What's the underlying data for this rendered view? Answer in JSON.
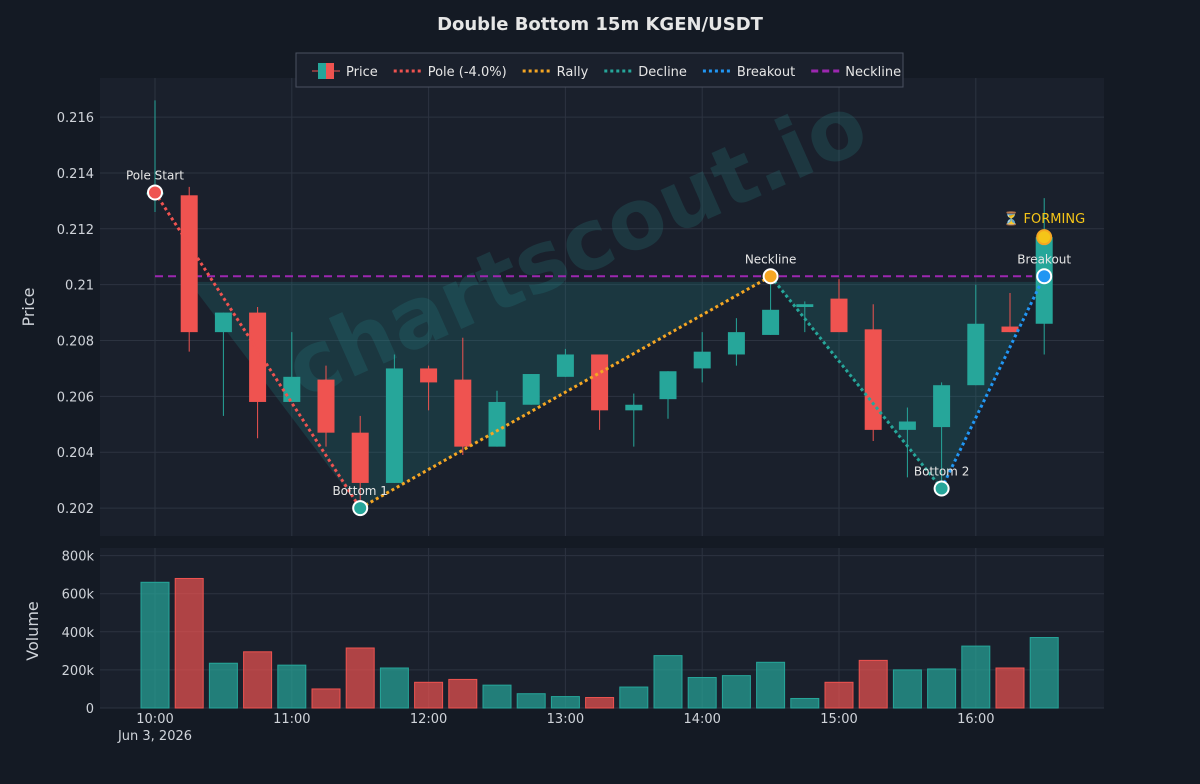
{
  "chart_data": {
    "type": "candlestick",
    "title": "Double Bottom 15m KGEN/USDT",
    "watermark": "chartscout.io",
    "ylabel_price": "Price",
    "ylabel_volume": "Volume",
    "date_label": "Jun 3, 2026",
    "x_ticks": [
      "10:00",
      "11:00",
      "12:00",
      "13:00",
      "14:00",
      "15:00",
      "16:00"
    ],
    "price_ticks": [
      "0.202",
      "0.204",
      "0.206",
      "0.208",
      "0.21",
      "0.212",
      "0.214",
      "0.216"
    ],
    "volume_ticks": [
      "0",
      "200k",
      "400k",
      "600k",
      "800k"
    ],
    "price_range": [
      0.201,
      0.2174
    ],
    "volume_range": [
      0,
      840000
    ],
    "legend": [
      {
        "label": "Price",
        "kind": "candle"
      },
      {
        "label": "Pole (-4.0%)",
        "kind": "dotted",
        "color": "#ef5350"
      },
      {
        "label": "Rally",
        "kind": "dotted",
        "color": "#f5a623"
      },
      {
        "label": "Decline",
        "kind": "dotted",
        "color": "#26a69a"
      },
      {
        "label": "Breakout",
        "kind": "dotted",
        "color": "#2196f3"
      },
      {
        "label": "Neckline",
        "kind": "dashed",
        "color": "#9c27b0"
      }
    ],
    "candles": [
      {
        "t": "10:00",
        "o": 0.2133,
        "h": 0.2166,
        "l": 0.2126,
        "c": 0.2133,
        "v": 660000
      },
      {
        "t": "10:15",
        "o": 0.2132,
        "h": 0.2135,
        "l": 0.2076,
        "c": 0.2083,
        "v": 680000
      },
      {
        "t": "10:30",
        "o": 0.2083,
        "h": 0.209,
        "l": 0.2053,
        "c": 0.209,
        "v": 235000
      },
      {
        "t": "10:45",
        "o": 0.209,
        "h": 0.2092,
        "l": 0.2045,
        "c": 0.2058,
        "v": 295000
      },
      {
        "t": "11:00",
        "o": 0.2058,
        "h": 0.2083,
        "l": 0.2058,
        "c": 0.2067,
        "v": 225000
      },
      {
        "t": "11:15",
        "o": 0.2066,
        "h": 0.2071,
        "l": 0.2042,
        "c": 0.2047,
        "v": 100000
      },
      {
        "t": "11:30",
        "o": 0.2047,
        "h": 0.2053,
        "l": 0.2021,
        "c": 0.2029,
        "v": 315000
      },
      {
        "t": "11:45",
        "o": 0.2029,
        "h": 0.2075,
        "l": 0.2029,
        "c": 0.207,
        "v": 210000
      },
      {
        "t": "12:00",
        "o": 0.207,
        "h": 0.2071,
        "l": 0.2055,
        "c": 0.2065,
        "v": 135000
      },
      {
        "t": "12:15",
        "o": 0.2066,
        "h": 0.2081,
        "l": 0.2039,
        "c": 0.2042,
        "v": 150000
      },
      {
        "t": "12:30",
        "o": 0.2042,
        "h": 0.2062,
        "l": 0.2042,
        "c": 0.2058,
        "v": 120000
      },
      {
        "t": "12:45",
        "o": 0.2057,
        "h": 0.2068,
        "l": 0.2057,
        "c": 0.2068,
        "v": 75000
      },
      {
        "t": "13:00",
        "o": 0.2067,
        "h": 0.2077,
        "l": 0.2067,
        "c": 0.2075,
        "v": 60000
      },
      {
        "t": "13:15",
        "o": 0.2075,
        "h": 0.2075,
        "l": 0.2048,
        "c": 0.2055,
        "v": 55000
      },
      {
        "t": "13:30",
        "o": 0.2055,
        "h": 0.2061,
        "l": 0.2042,
        "c": 0.2057,
        "v": 110000
      },
      {
        "t": "13:45",
        "o": 0.2059,
        "h": 0.2069,
        "l": 0.2052,
        "c": 0.2069,
        "v": 275000
      },
      {
        "t": "14:00",
        "o": 0.207,
        "h": 0.2083,
        "l": 0.2065,
        "c": 0.2076,
        "v": 160000
      },
      {
        "t": "14:15",
        "o": 0.2075,
        "h": 0.2088,
        "l": 0.2071,
        "c": 0.2083,
        "v": 170000
      },
      {
        "t": "14:30",
        "o": 0.2082,
        "h": 0.2103,
        "l": 0.2082,
        "c": 0.2091,
        "v": 240000
      },
      {
        "t": "14:45",
        "o": 0.2092,
        "h": 0.2094,
        "l": 0.2083,
        "c": 0.2093,
        "v": 50000
      },
      {
        "t": "15:00",
        "o": 0.2095,
        "h": 0.2102,
        "l": 0.2083,
        "c": 0.2083,
        "v": 135000
      },
      {
        "t": "15:15",
        "o": 0.2084,
        "h": 0.2093,
        "l": 0.2044,
        "c": 0.2048,
        "v": 250000
      },
      {
        "t": "15:30",
        "o": 0.2048,
        "h": 0.2056,
        "l": 0.2031,
        "c": 0.2051,
        "v": 200000
      },
      {
        "t": "15:45",
        "o": 0.2049,
        "h": 0.2065,
        "l": 0.2025,
        "c": 0.2064,
        "v": 205000
      },
      {
        "t": "16:00",
        "o": 0.2064,
        "h": 0.21,
        "l": 0.2064,
        "c": 0.2086,
        "v": 325000
      },
      {
        "t": "16:15",
        "o": 0.2085,
        "h": 0.2097,
        "l": 0.2083,
        "c": 0.2083,
        "v": 210000
      },
      {
        "t": "16:30",
        "o": 0.2086,
        "h": 0.2131,
        "l": 0.2075,
        "c": 0.2117,
        "v": 370000
      }
    ],
    "neckline": 0.2103,
    "pattern_points": [
      {
        "label": "Pole Start",
        "index": 0,
        "price": 0.2133,
        "color": "#ef5350",
        "label_pos": "above"
      },
      {
        "label": "Bottom 1",
        "index": 6,
        "price": 0.202,
        "color": "#26a69a",
        "label_pos": "above"
      },
      {
        "label": "Neckline",
        "index": 18,
        "price": 0.2103,
        "color": "#f5a623",
        "label_pos": "above"
      },
      {
        "label": "Bottom 2",
        "index": 23,
        "price": 0.2027,
        "color": "#26a69a",
        "label_pos": "above"
      },
      {
        "label": "Breakout",
        "index": 26,
        "price": 0.2103,
        "color": "#2196f3",
        "label_pos": "above"
      }
    ],
    "forming": {
      "label": "⏳ FORMING",
      "index": 26,
      "price": 0.2117,
      "color": "#f5c518"
    },
    "colors": {
      "up": "#26a69a",
      "down": "#ef5350",
      "background": "#141a24",
      "panel": "#1a202c"
    }
  }
}
